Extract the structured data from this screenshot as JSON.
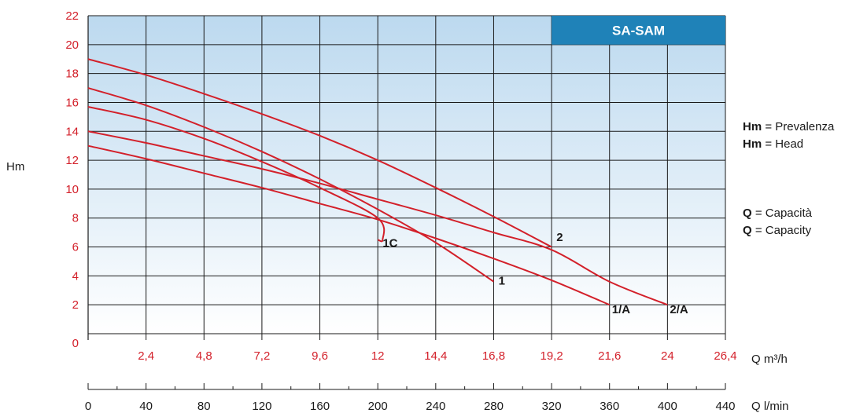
{
  "chart_data": {
    "type": "line",
    "title": "SA-SAM",
    "ylabel": "Hm",
    "xlabel": "Q m³/h",
    "x2label": "Q l/min",
    "xlim": [
      0,
      26.4
    ],
    "ylim": [
      0,
      22
    ],
    "x_ticks": [
      "2,4",
      "4,8",
      "7,2",
      "9,6",
      "12",
      "14,4",
      "16,8",
      "19,2",
      "21,6",
      "24",
      "26,4"
    ],
    "x_tick_values": [
      2.4,
      4.8,
      7.2,
      9.6,
      12,
      14.4,
      16.8,
      19.2,
      21.6,
      24,
      26.4
    ],
    "x_zero_label": "0",
    "y_ticks": [
      "2",
      "4",
      "6",
      "8",
      "10",
      "12",
      "14",
      "16",
      "18",
      "20",
      "22"
    ],
    "y_tick_values": [
      2,
      4,
      6,
      8,
      10,
      12,
      14,
      16,
      18,
      20,
      22
    ],
    "y_zero_label": "0",
    "x2_ticks": [
      "0",
      "40",
      "80",
      "120",
      "160",
      "200",
      "240",
      "280",
      "320",
      "360",
      "400",
      "440"
    ],
    "x2_tick_values": [
      0,
      40,
      80,
      120,
      160,
      200,
      240,
      280,
      320,
      360,
      400,
      440
    ],
    "grid": true,
    "series": [
      {
        "name": "2",
        "label_at": [
          19.4,
          6.4
        ],
        "points": [
          [
            0,
            19
          ],
          [
            2.4,
            17.9
          ],
          [
            4.8,
            16.6
          ],
          [
            7.2,
            15.2
          ],
          [
            9.6,
            13.7
          ],
          [
            12,
            12
          ],
          [
            14.4,
            10.1
          ],
          [
            16.8,
            8.1
          ],
          [
            19.2,
            6
          ]
        ]
      },
      {
        "name": "1",
        "label_at": [
          17.0,
          3.4
        ],
        "points": [
          [
            0,
            17
          ],
          [
            2.4,
            15.8
          ],
          [
            4.8,
            14.3
          ],
          [
            7.2,
            12.6
          ],
          [
            9.6,
            10.7
          ],
          [
            12,
            8.6
          ],
          [
            14.4,
            6.3
          ],
          [
            16.8,
            3.6
          ]
        ]
      },
      {
        "name": "1C",
        "label_at": [
          12.2,
          6.0
        ],
        "points": [
          [
            0,
            15.7
          ],
          [
            2.4,
            14.8
          ],
          [
            4.8,
            13.5
          ],
          [
            7.2,
            11.9
          ],
          [
            9.6,
            10.1
          ],
          [
            12,
            8.0
          ],
          [
            12.2,
            6.5
          ],
          [
            12,
            6.5
          ]
        ]
      },
      {
        "name": "2/A",
        "label_at": [
          24.1,
          1.4
        ],
        "points": [
          [
            0,
            14
          ],
          [
            2.4,
            13.2
          ],
          [
            4.8,
            12.3
          ],
          [
            7.2,
            11.4
          ],
          [
            9.6,
            10.4
          ],
          [
            12,
            9.3
          ],
          [
            14.4,
            8.2
          ],
          [
            16.8,
            7
          ],
          [
            19.2,
            5.8
          ],
          [
            21.6,
            3.6
          ],
          [
            24,
            2
          ]
        ]
      },
      {
        "name": "1/A",
        "label_at": [
          21.7,
          1.4
        ],
        "points": [
          [
            0,
            13
          ],
          [
            2.4,
            12.1
          ],
          [
            4.8,
            11.1
          ],
          [
            7.2,
            10.1
          ],
          [
            9.6,
            9
          ],
          [
            12,
            7.9
          ],
          [
            14.4,
            6.6
          ],
          [
            16.8,
            5.2
          ],
          [
            19.2,
            3.7
          ],
          [
            21.6,
            2
          ]
        ]
      }
    ]
  },
  "notes": {
    "hm_label": "Hm",
    "hm_it": " = Prevalenza",
    "hm_en": " = Head",
    "q_label": "Q",
    "q_it": " = Capacità",
    "q_en": " = Capacity"
  },
  "colors": {
    "curve": "#d3202a",
    "tick_red": "#d3202a",
    "legend_box": "#1f82b8",
    "grid": "#1a1a1a",
    "bg_top": "#bcd9ef",
    "bg_bottom": "#ffffff"
  }
}
